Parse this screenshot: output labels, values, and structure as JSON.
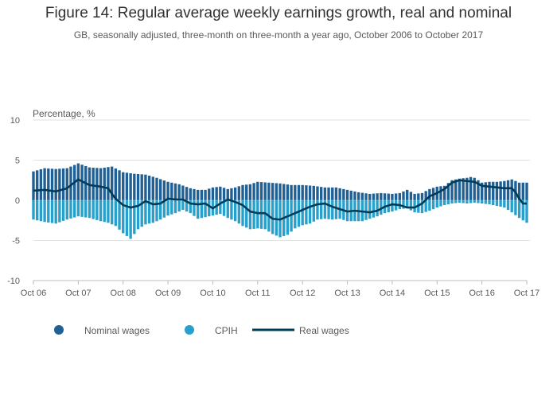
{
  "chart_data": {
    "type": "bar",
    "title": "Figure 14: Regular average weekly earnings growth, real and nominal",
    "subtitle": "GB, seasonally adjusted, three-month on three-month a year ago, October 2006 to October 2017",
    "ylabel": "Percentage, %",
    "xlabel": "",
    "ylim": [
      -10,
      10
    ],
    "yticks": [
      10,
      5,
      0,
      -5,
      -10
    ],
    "x_tick_labels": [
      "Oct 06",
      "Oct 07",
      "Oct 08",
      "Oct 09",
      "Oct 10",
      "Oct 11",
      "Oct 12",
      "Oct 13",
      "Oct 14",
      "Oct 15",
      "Oct 16",
      "Oct 17"
    ],
    "stacked": true,
    "months_count": 133,
    "colors": {
      "nominal": "#206095",
      "cpih": "#27a0cc",
      "real": "#003c57",
      "grid": "#e2e2e2",
      "axis": "#bdbdbd",
      "text": "#5a5a5a"
    },
    "series": [
      {
        "name": "Nominal wages",
        "type": "bar",
        "anchors": [
          [
            0,
            3.6
          ],
          [
            3,
            4.0
          ],
          [
            6,
            3.9
          ],
          [
            9,
            4.0
          ],
          [
            12,
            4.6
          ],
          [
            15,
            4.1
          ],
          [
            18,
            4.0
          ],
          [
            21,
            4.2
          ],
          [
            24,
            3.5
          ],
          [
            27,
            3.3
          ],
          [
            30,
            3.2
          ],
          [
            33,
            2.8
          ],
          [
            36,
            2.3
          ],
          [
            39,
            2.0
          ],
          [
            42,
            1.5
          ],
          [
            44,
            1.3
          ],
          [
            46,
            1.3
          ],
          [
            48,
            1.6
          ],
          [
            50,
            1.7
          ],
          [
            52,
            1.4
          ],
          [
            54,
            1.6
          ],
          [
            56,
            1.9
          ],
          [
            58,
            2.0
          ],
          [
            60,
            2.3
          ],
          [
            63,
            2.2
          ],
          [
            66,
            2.1
          ],
          [
            69,
            1.9
          ],
          [
            72,
            1.9
          ],
          [
            75,
            1.8
          ],
          [
            78,
            1.6
          ],
          [
            81,
            1.6
          ],
          [
            84,
            1.3
          ],
          [
            87,
            1.0
          ],
          [
            90,
            0.8
          ],
          [
            93,
            0.9
          ],
          [
            96,
            0.8
          ],
          [
            98,
            0.9
          ],
          [
            100,
            1.3
          ],
          [
            102,
            0.8
          ],
          [
            104,
            0.9
          ],
          [
            106,
            1.4
          ],
          [
            108,
            1.7
          ],
          [
            110,
            1.8
          ],
          [
            112,
            2.5
          ],
          [
            114,
            2.7
          ],
          [
            116,
            2.8
          ],
          [
            117,
            2.9
          ],
          [
            118,
            2.8
          ],
          [
            120,
            2.2
          ],
          [
            122,
            2.3
          ],
          [
            124,
            2.3
          ],
          [
            126,
            2.4
          ],
          [
            127,
            2.5
          ],
          [
            128,
            2.6
          ],
          [
            130,
            2.2
          ],
          [
            132,
            2.2
          ]
        ]
      },
      {
        "name": "CPIH",
        "type": "bar",
        "anchors": [
          [
            0,
            -2.4
          ],
          [
            3,
            -2.7
          ],
          [
            6,
            -2.9
          ],
          [
            9,
            -2.4
          ],
          [
            12,
            -2.0
          ],
          [
            15,
            -2.2
          ],
          [
            18,
            -2.6
          ],
          [
            20,
            -2.8
          ],
          [
            22,
            -3.2
          ],
          [
            24,
            -4.1
          ],
          [
            26,
            -4.8
          ],
          [
            28,
            -3.6
          ],
          [
            30,
            -3.0
          ],
          [
            32,
            -2.8
          ],
          [
            34,
            -2.4
          ],
          [
            36,
            -1.9
          ],
          [
            38,
            -1.6
          ],
          [
            40,
            -1.2
          ],
          [
            42,
            -1.6
          ],
          [
            44,
            -2.3
          ],
          [
            46,
            -2.1
          ],
          [
            48,
            -1.9
          ],
          [
            50,
            -1.7
          ],
          [
            52,
            -2.2
          ],
          [
            54,
            -2.6
          ],
          [
            56,
            -3.2
          ],
          [
            58,
            -3.6
          ],
          [
            60,
            -3.5
          ],
          [
            62,
            -3.6
          ],
          [
            64,
            -4.2
          ],
          [
            66,
            -4.6
          ],
          [
            68,
            -4.3
          ],
          [
            70,
            -3.5
          ],
          [
            72,
            -3.1
          ],
          [
            74,
            -2.9
          ],
          [
            76,
            -2.4
          ],
          [
            78,
            -2.3
          ],
          [
            80,
            -2.4
          ],
          [
            82,
            -2.3
          ],
          [
            84,
            -2.6
          ],
          [
            86,
            -2.6
          ],
          [
            88,
            -2.6
          ],
          [
            90,
            -2.3
          ],
          [
            92,
            -2.0
          ],
          [
            94,
            -1.6
          ],
          [
            96,
            -1.4
          ],
          [
            98,
            -1.1
          ],
          [
            100,
            -1.0
          ],
          [
            102,
            -1.5
          ],
          [
            104,
            -1.6
          ],
          [
            106,
            -1.3
          ],
          [
            108,
            -0.9
          ],
          [
            110,
            -0.6
          ],
          [
            112,
            -0.4
          ],
          [
            114,
            -0.3
          ],
          [
            116,
            -0.4
          ],
          [
            118,
            -0.3
          ],
          [
            120,
            -0.4
          ],
          [
            122,
            -0.5
          ],
          [
            124,
            -0.7
          ],
          [
            126,
            -0.9
          ],
          [
            127,
            -1.2
          ],
          [
            128,
            -1.5
          ],
          [
            130,
            -2.2
          ],
          [
            132,
            -2.8
          ]
        ]
      },
      {
        "name": "Real wages",
        "type": "line",
        "anchors": [
          [
            0,
            1.2
          ],
          [
            3,
            1.3
          ],
          [
            6,
            1.1
          ],
          [
            9,
            1.5
          ],
          [
            12,
            2.6
          ],
          [
            15,
            1.9
          ],
          [
            18,
            1.7
          ],
          [
            20,
            1.5
          ],
          [
            21,
            0.8
          ],
          [
            22,
            0.2
          ],
          [
            24,
            -0.6
          ],
          [
            26,
            -0.9
          ],
          [
            28,
            -0.7
          ],
          [
            30,
            -0.1
          ],
          [
            32,
            -0.5
          ],
          [
            34,
            -0.4
          ],
          [
            36,
            0.2
          ],
          [
            38,
            0.1
          ],
          [
            40,
            0.1
          ],
          [
            42,
            -0.4
          ],
          [
            44,
            -0.5
          ],
          [
            46,
            -0.4
          ],
          [
            48,
            -1.0
          ],
          [
            50,
            -0.4
          ],
          [
            52,
            0.1
          ],
          [
            54,
            -0.2
          ],
          [
            56,
            -0.6
          ],
          [
            58,
            -1.4
          ],
          [
            60,
            -1.6
          ],
          [
            62,
            -1.6
          ],
          [
            64,
            -2.3
          ],
          [
            66,
            -2.4
          ],
          [
            68,
            -2.0
          ],
          [
            70,
            -1.6
          ],
          [
            72,
            -1.2
          ],
          [
            74,
            -0.8
          ],
          [
            76,
            -0.5
          ],
          [
            78,
            -0.4
          ],
          [
            80,
            -0.8
          ],
          [
            82,
            -1.1
          ],
          [
            84,
            -1.4
          ],
          [
            86,
            -1.3
          ],
          [
            88,
            -1.4
          ],
          [
            90,
            -1.5
          ],
          [
            92,
            -1.3
          ],
          [
            94,
            -0.8
          ],
          [
            96,
            -0.5
          ],
          [
            98,
            -0.6
          ],
          [
            100,
            -0.9
          ],
          [
            102,
            -0.9
          ],
          [
            104,
            -0.4
          ],
          [
            106,
            0.5
          ],
          [
            108,
            0.9
          ],
          [
            110,
            1.4
          ],
          [
            112,
            2.2
          ],
          [
            114,
            2.5
          ],
          [
            116,
            2.4
          ],
          [
            118,
            2.3
          ],
          [
            120,
            1.8
          ],
          [
            122,
            1.7
          ],
          [
            124,
            1.6
          ],
          [
            126,
            1.5
          ],
          [
            128,
            1.5
          ],
          [
            129,
            1.0
          ],
          [
            130,
            0.2
          ],
          [
            131,
            -0.4
          ],
          [
            132,
            -0.4
          ]
        ]
      }
    ],
    "legend": {
      "placement": "bottom",
      "items": [
        {
          "label": "Nominal wages",
          "marker": "circle",
          "series": "nominal"
        },
        {
          "label": "CPIH",
          "marker": "circle",
          "series": "cpih"
        },
        {
          "label": "Real wages",
          "marker": "line",
          "series": "real"
        }
      ]
    }
  }
}
